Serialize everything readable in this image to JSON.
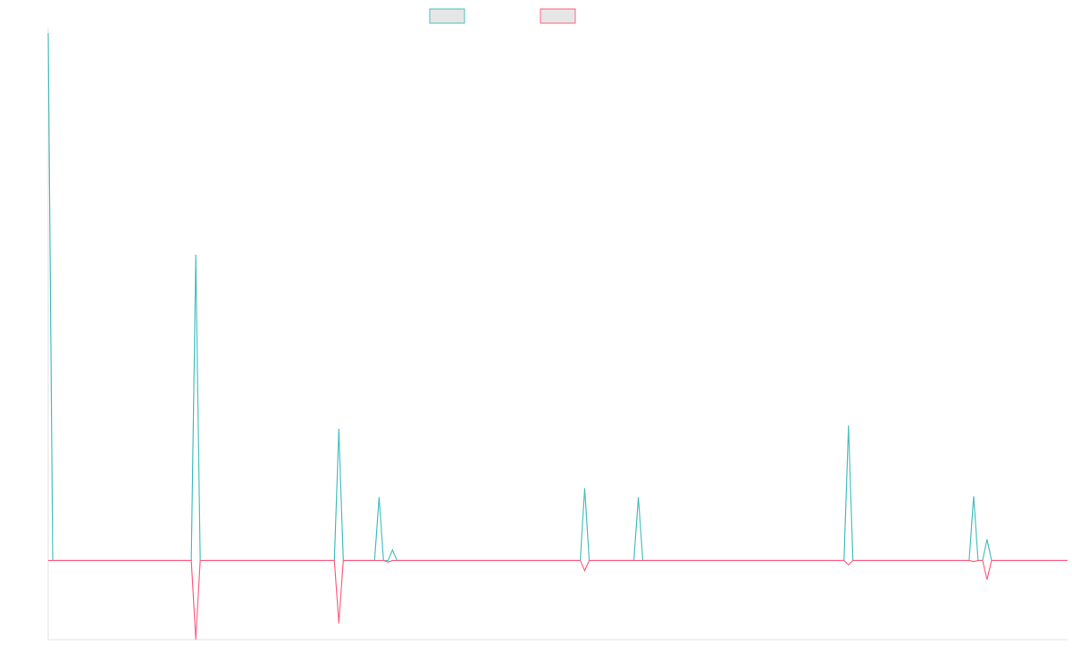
{
  "chart_data": {
    "type": "line",
    "xlim": [
      0,
      228
    ],
    "ylim": [
      -15,
      100
    ],
    "series": [
      {
        "color": "#4bc0c0",
        "x": [
          0,
          1,
          32,
          33,
          34,
          64,
          65,
          66,
          73,
          74,
          75,
          76,
          77,
          78,
          119,
          120,
          121,
          131,
          132,
          133,
          178,
          179,
          180,
          206,
          207,
          208,
          209,
          210,
          211,
          228
        ],
        "values": [
          100,
          0,
          0,
          58,
          0,
          0,
          25,
          0,
          0,
          12,
          0,
          0,
          2,
          0,
          0,
          13.7,
          0,
          0,
          12,
          0,
          0,
          25.6,
          0,
          0,
          12.2,
          0,
          0,
          4,
          0,
          0
        ]
      },
      {
        "color": "#ff6384",
        "x": [
          0,
          32,
          33,
          34,
          64,
          65,
          66,
          75,
          76,
          77,
          119,
          120,
          121,
          178,
          179,
          180,
          206,
          207,
          208,
          209,
          210,
          211,
          228
        ],
        "values": [
          0,
          0,
          -15,
          0,
          0,
          -11.9,
          0,
          0,
          -0.3,
          0,
          0,
          -1.9,
          0,
          0,
          -0.8,
          0,
          0,
          -0.2,
          0,
          0,
          -3.6,
          0,
          0
        ]
      }
    ]
  }
}
